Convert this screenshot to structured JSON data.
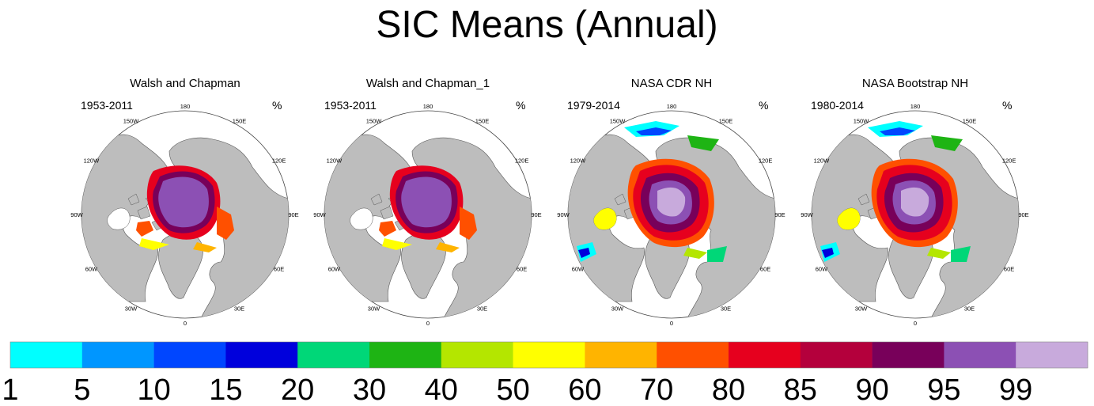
{
  "page_title": "SIC Means (Annual)",
  "chart_data": {
    "type": "polar_map_panels",
    "title": "SIC Means (Annual)",
    "variable_unit": "%",
    "lon_labels": [
      "180",
      "150E",
      "120E",
      "90E",
      "60E",
      "30E",
      "0",
      "30W",
      "60W",
      "90W",
      "120W",
      "150W"
    ],
    "panels": [
      {
        "title": "Walsh and Chapman",
        "period": "1953-2011",
        "unit": "%"
      },
      {
        "title": "Walsh and Chapman_1",
        "period": "1953-2011",
        "unit": "%"
      },
      {
        "title": "NASA CDR NH",
        "period": "1979-2014",
        "unit": "%"
      },
      {
        "title": "NASA Bootstrap NH",
        "period": "1980-2014",
        "unit": "%"
      }
    ],
    "colorbar": {
      "labels": [
        "1",
        "5",
        "10",
        "15",
        "20",
        "30",
        "40",
        "50",
        "60",
        "70",
        "80",
        "85",
        "90",
        "95",
        "99"
      ],
      "colors": [
        "#00ffff",
        "#0096ff",
        "#0046ff",
        "#0000dc",
        "#00d778",
        "#1eb414",
        "#b4e600",
        "#ffff00",
        "#ffb400",
        "#ff5000",
        "#e6001e",
        "#b4003c",
        "#78005a",
        "#8c50b4",
        "#c8aadc"
      ]
    }
  }
}
